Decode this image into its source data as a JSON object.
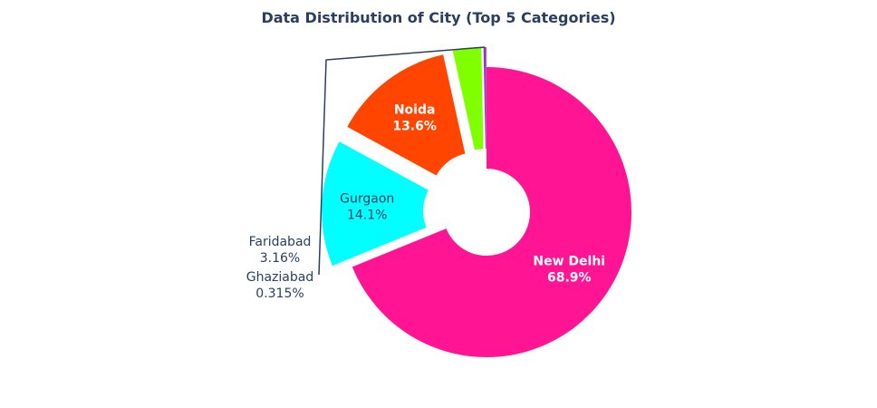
{
  "chart_data": {
    "type": "pie",
    "title": "Data Distribution of City (Top 5 Categories)",
    "hole": true,
    "categories": [
      "New Delhi",
      "Gurgaon",
      "Noida",
      "Faridabad",
      "Ghaziabad"
    ],
    "values": [
      68.9,
      14.1,
      13.6,
      3.16,
      0.315
    ],
    "percent_labels": [
      "68.9%",
      "14.1%",
      "13.6%",
      "3.16%",
      "0.315%"
    ],
    "colors": [
      "#ff1493",
      "#00ffff",
      "#ff4500",
      "#7fff00",
      "#9932cc"
    ],
    "label_colors": [
      "#ffffff",
      "#2a3f5f",
      "#ffffff",
      "#2a3f5f",
      "#2a3f5f"
    ],
    "label_bold": [
      true,
      false,
      true,
      false,
      false
    ],
    "exploded": [
      false,
      true,
      true,
      true,
      true
    ],
    "label_position": [
      "inside",
      "inside",
      "inside",
      "outside",
      "outside"
    ]
  }
}
